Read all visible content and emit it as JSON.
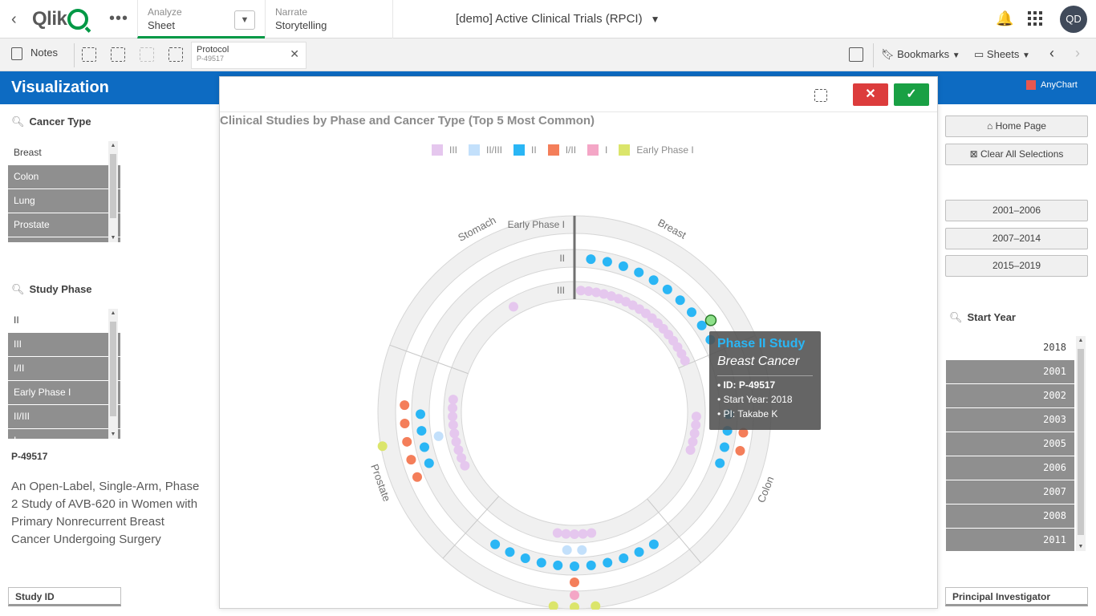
{
  "header": {
    "app_title": "[demo] Active Clinical Trials (RPCI)",
    "tabs": [
      {
        "small": "Analyze",
        "big": "Sheet"
      },
      {
        "small": "Narrate",
        "big": "Storytelling"
      }
    ],
    "user_initials": "QD"
  },
  "toolbar": {
    "notes_label": "Notes",
    "selection": {
      "field": "Protocol",
      "value": "P-49517"
    },
    "bookmarks_label": "Bookmarks",
    "sheets_label": "Sheets"
  },
  "sheet": {
    "title": "Visualization",
    "anychart_label": "AnyChart"
  },
  "left": {
    "cancer_type": {
      "title": "Cancer Type",
      "items": [
        "Breast",
        "Colon",
        "Lung",
        "Prostate"
      ]
    },
    "study_phase": {
      "title": "Study Phase",
      "items": [
        "II",
        "III",
        "I/II",
        "Early Phase I",
        "II/III",
        "I"
      ]
    },
    "protocol_id": "P-49517",
    "protocol_desc": "An Open-Label, Single-Arm, Phase 2 Study of AVB-620 in Women with Primary Nonrecurrent Breast Cancer Undergoing Surgery",
    "study_id_header": "Study ID"
  },
  "right": {
    "home_button": "Home Page",
    "clear_button": "Clear All Selections",
    "range_buttons": [
      "2001–2006",
      "2007–2014",
      "2015–2019"
    ],
    "start_year": {
      "title": "Start Year",
      "items": [
        "2018",
        "2001",
        "2002",
        "2003",
        "2005",
        "2006",
        "2007",
        "2008",
        "2011"
      ]
    },
    "pi_header": "Principal Investigator"
  },
  "chart_data": {
    "type": "scatter",
    "title": "Clinical Studies by Phase and Cancer Type (Top 5 Most Common)",
    "legend": [
      {
        "name": "III",
        "color": "#e5c7ee"
      },
      {
        "name": "II/III",
        "color": "#c3e0fb"
      },
      {
        "name": "II",
        "color": "#2ab6f5"
      },
      {
        "name": "I/II",
        "color": "#f47e5a"
      },
      {
        "name": "I",
        "color": "#f4a6c6"
      },
      {
        "name": "Early Phase I",
        "color": "#dbe56b"
      }
    ],
    "ring_labels": [
      "Early Phase I",
      "II",
      "III"
    ],
    "sector_labels": [
      "Breast",
      "Colon",
      "Lung",
      "Prostate",
      "Stomach"
    ],
    "points": [
      {
        "cancer": "Breast",
        "phase": "II",
        "count": 10
      },
      {
        "cancer": "Breast",
        "phase": "III",
        "count": 18
      },
      {
        "cancer": "Colon",
        "phase": "III",
        "count": 5
      },
      {
        "cancer": "Colon",
        "phase": "II",
        "count": 4
      },
      {
        "cancer": "Colon",
        "phase": "I/II",
        "count": 2
      },
      {
        "cancer": "Lung",
        "phase": "III",
        "count": 5
      },
      {
        "cancer": "Lung",
        "phase": "II/III",
        "count": 2
      },
      {
        "cancer": "Lung",
        "phase": "II",
        "count": 11
      },
      {
        "cancer": "Lung",
        "phase": "I/II",
        "count": 1
      },
      {
        "cancer": "Lung",
        "phase": "I",
        "count": 1
      },
      {
        "cancer": "Lung",
        "phase": "Early Phase I",
        "count": 3
      },
      {
        "cancer": "Prostate",
        "phase": "III",
        "count": 9
      },
      {
        "cancer": "Prostate",
        "phase": "II/III",
        "count": 1
      },
      {
        "cancer": "Prostate",
        "phase": "II",
        "count": 4
      },
      {
        "cancer": "Prostate",
        "phase": "I/II",
        "count": 5
      },
      {
        "cancer": "Prostate",
        "phase": "Early Phase I",
        "count": 1
      },
      {
        "cancer": "Stomach",
        "phase": "III",
        "count": 1
      }
    ],
    "tooltip": {
      "title": "Phase II Study",
      "subtitle": "Breast Cancer",
      "id_label": "• ID: P-49517",
      "year_label": "• Start Year: 2018",
      "pi_label": "• PI: Takabe K"
    }
  }
}
